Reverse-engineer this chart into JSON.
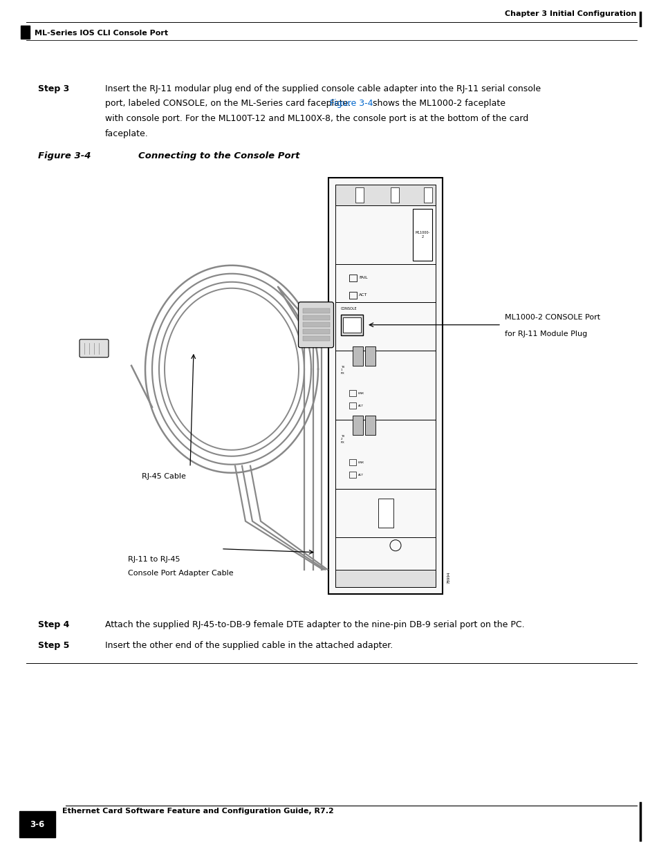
{
  "page_width": 9.54,
  "page_height": 12.35,
  "background_color": "#ffffff",
  "top_header_right": "Chapter 3 Initial Configuration",
  "top_header_left": "ML-Series IOS CLI Console Port",
  "bottom_footer_center": "Ethernet Card Software Feature and Configuration Guide, R7.2",
  "bottom_footer_page": "3-6",
  "step3_label": "Step 3",
  "step3_text_line1": "Insert the RJ-11 modular plug end of the supplied console cable adapter into the RJ-11 serial console",
  "step3_text_line2": "port, labeled CONSOLE, on the ML-Series card faceplate.",
  "step3_link": "Figure 3-4",
  "step3_text_line2b": " shows the ML1000-2 faceplate",
  "step3_text_line3": "with console port. For the ML100T-12 and ML100X-8, the console port is at the bottom of the card",
  "step3_text_line4": "faceplate.",
  "figure_label": "Figure 3-4",
  "figure_title": "Connecting to the Console Port",
  "step4_label": "Step 4",
  "step4_text": "Attach the supplied RJ-45-to-DB-9 female DTE adapter to the nine-pin DB-9 serial port on the PC.",
  "step5_label": "Step 5",
  "step5_text": "Insert the other end of the supplied cable in the attached adapter.",
  "annotation_rj45": "RJ-45 Cable",
  "annotation_adapter_line1": "RJ-11 to RJ-45",
  "annotation_adapter_line2": "Console Port Adapter Cable",
  "annotation_console_line1": "ML1000-2 CONSOLE Port",
  "annotation_console_line2": "for RJ-11 Module Plug",
  "label_78994": "78994",
  "label_ml1000": "ML1000-\n2",
  "label_fail": "FAIL",
  "label_act": "ACT",
  "label_console": "CONSOLE",
  "label_tx1": "TX\n1\nRX",
  "label_link1": "LINK",
  "label_act1": "ACT",
  "label_tx2": "TX\n2\nRX",
  "label_link2": "LINK",
  "label_act2": "ACT",
  "header_color": "#000000",
  "text_color": "#000000",
  "link_color": "#0066cc",
  "body_fontsize": 9.0,
  "step_fontsize": 9.0,
  "figure_label_fontsize": 9.5,
  "header_fontsize": 8.0,
  "footer_fontsize": 8.0,
  "annot_fontsize": 8.0,
  "small_label_fontsize": 4.5
}
